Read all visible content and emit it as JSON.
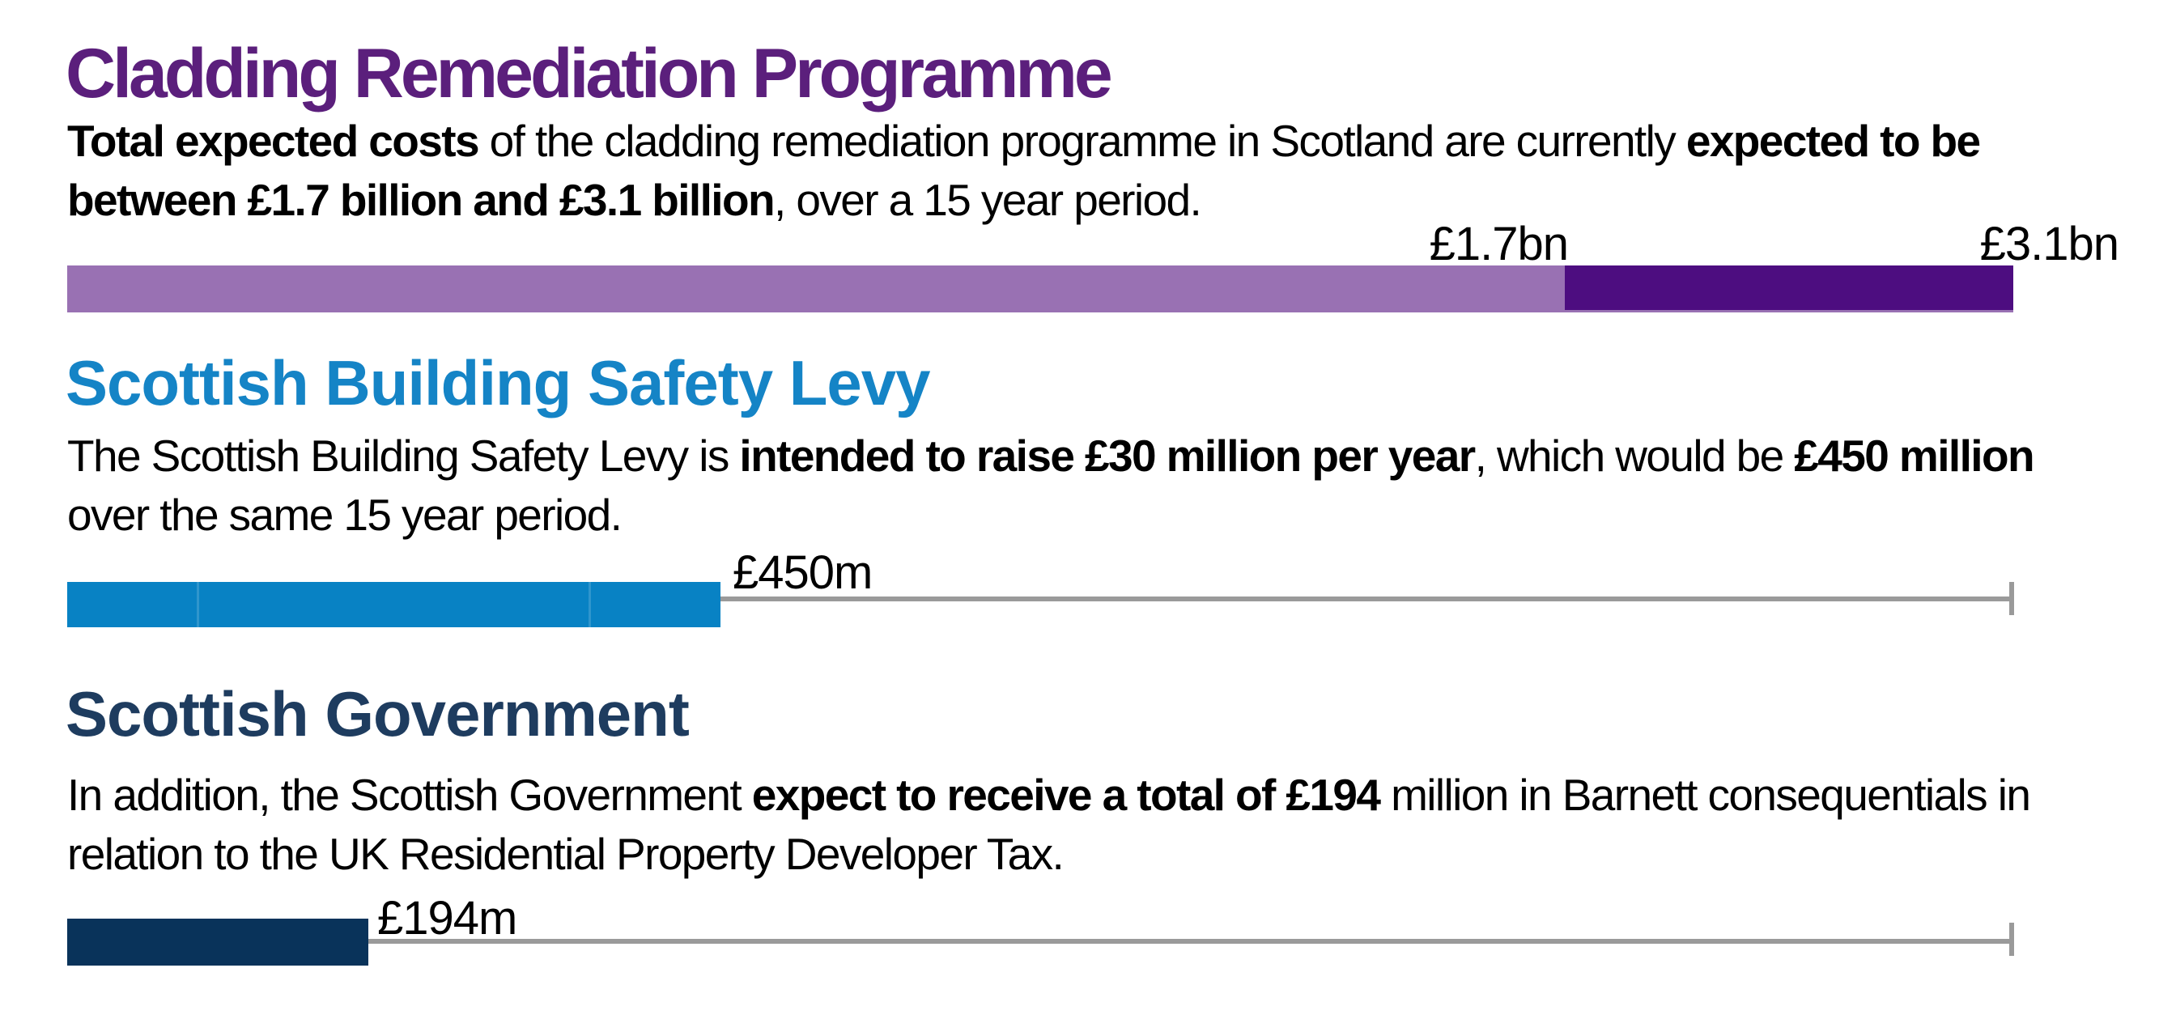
{
  "sections": [
    {
      "heading": "Cladding Remediation Programme",
      "lines": [
        {
          "segments": [
            {
              "text": "Total expected costs",
              "bold": true
            },
            {
              "text": " of the cladding remediation programme in Scotland are currently ",
              "bold": false
            },
            {
              "text": "expected to be",
              "bold": true
            }
          ]
        },
        {
          "segments": [
            {
              "text": "between £1.7 billion and £3.1 billion",
              "bold": true
            },
            {
              "text": ", over a 15 year period.",
              "bold": false
            }
          ]
        }
      ],
      "chart": {
        "low_label": "£1.7bn",
        "high_label": "£3.1bn"
      }
    },
    {
      "heading": "Scottish Building Safety Levy",
      "lines": [
        {
          "segments": [
            {
              "text": "The Scottish Building Safety Levy is ",
              "bold": false
            },
            {
              "text": "intended to raise £30 million per year",
              "bold": true
            },
            {
              "text": ", which would be ",
              "bold": false
            },
            {
              "text": "£450 million",
              "bold": true
            }
          ]
        },
        {
          "segments": [
            {
              "text": "over the same 15 year period.",
              "bold": false
            }
          ]
        }
      ],
      "chart": {
        "value_label": "£450m"
      }
    },
    {
      "heading": "Scottish Government",
      "lines": [
        {
          "segments": [
            {
              "text": "In addition, the Scottish Government ",
              "bold": false
            },
            {
              "text": "expect to receive a total of £194",
              "bold": true
            },
            {
              "text": " million in Barnett consequentials in",
              "bold": false
            }
          ]
        },
        {
          "segments": [
            {
              "text": "relation to the UK Residential Property Developer Tax.",
              "bold": false
            }
          ]
        }
      ],
      "chart": {
        "value_label": "£194m"
      }
    }
  ],
  "colors": {
    "heading_purple": "#5B1F7C",
    "bar_light_purple": "#9971B3",
    "bar_dark_purple": "#4D0D80",
    "heading_blue": "#1584C6",
    "bar_blue": "#0882C4",
    "heading_navy": "#1E3C5F",
    "bar_navy": "#09335A",
    "axis_gray": "#9A9A9A"
  },
  "chart_data": [
    {
      "type": "bar",
      "subtype": "range",
      "title": "Cladding Remediation Programme",
      "unit": "£bn",
      "low": 1.7,
      "high": 3.1,
      "low_label": "£1.7bn",
      "high_label": "£3.1bn",
      "period_years": 15
    },
    {
      "type": "bar",
      "title": "Scottish Building Safety Levy",
      "unit": "£m",
      "value": 450,
      "label": "£450m",
      "per_year": 30,
      "period_years": 15
    },
    {
      "type": "bar",
      "title": "Scottish Government",
      "unit": "£m",
      "value": 194,
      "label": "£194m"
    }
  ]
}
